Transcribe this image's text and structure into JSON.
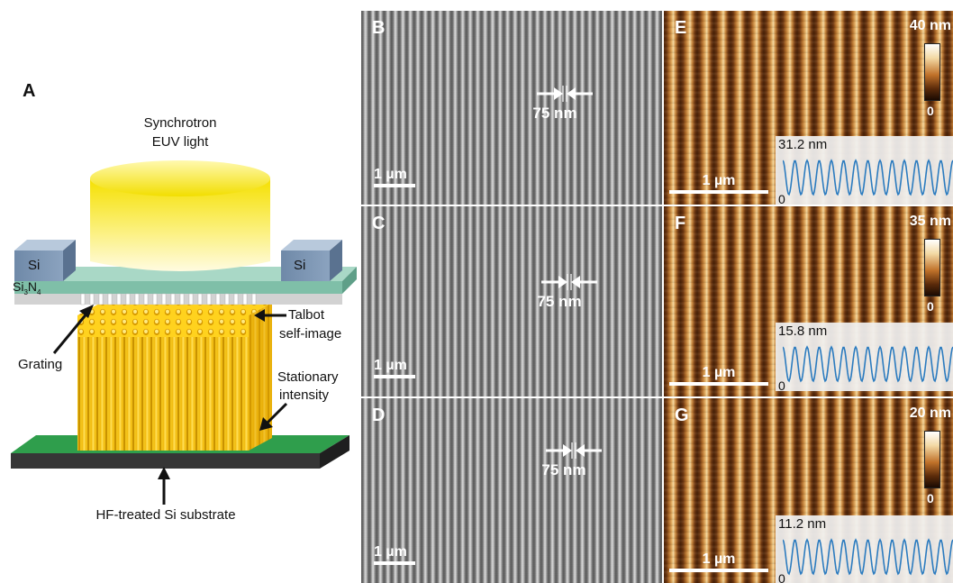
{
  "panel_a": {
    "letter": "A",
    "source_label_line1": "Synchrotron",
    "source_label_line2": "EUV light",
    "si_left": "Si",
    "si_right": "Si",
    "membrane_base": "Si",
    "membrane_sub1": "3",
    "membrane_mid": "N",
    "membrane_sub2": "4",
    "grating_label": "Grating",
    "talbot_line1": "Talbot",
    "talbot_line2": "self-image",
    "stationary_line1": "Stationary",
    "stationary_line2": "intensity",
    "substrate_label": "HF-treated Si substrate",
    "colors": {
      "beam": "#f7e21a",
      "grating_frame": "#7fbfa8",
      "substrate_top": "#2e9e4a",
      "substrate_base": "#3a3a3a"
    }
  },
  "sem_panels": [
    {
      "letter": "B",
      "pitch": "75 nm",
      "scale": "1 µm"
    },
    {
      "letter": "C",
      "pitch": "75 nm",
      "scale": "1 µm"
    },
    {
      "letter": "D",
      "pitch": "75 nm",
      "scale": "1 µm"
    }
  ],
  "afm_panels": [
    {
      "letter": "E",
      "colorbar_max": "40 nm",
      "colorbar_min": "0",
      "scale": "1 µm",
      "profile_max": "31.2 nm",
      "profile_min": "0"
    },
    {
      "letter": "F",
      "colorbar_max": "35 nm",
      "colorbar_min": "0",
      "scale": "1 µm",
      "profile_max": "15.8 nm",
      "profile_min": "0"
    },
    {
      "letter": "G",
      "colorbar_max": "20 nm",
      "colorbar_min": "0",
      "scale": "1 µm",
      "profile_max": "11.2 nm",
      "profile_min": "0"
    }
  ]
}
